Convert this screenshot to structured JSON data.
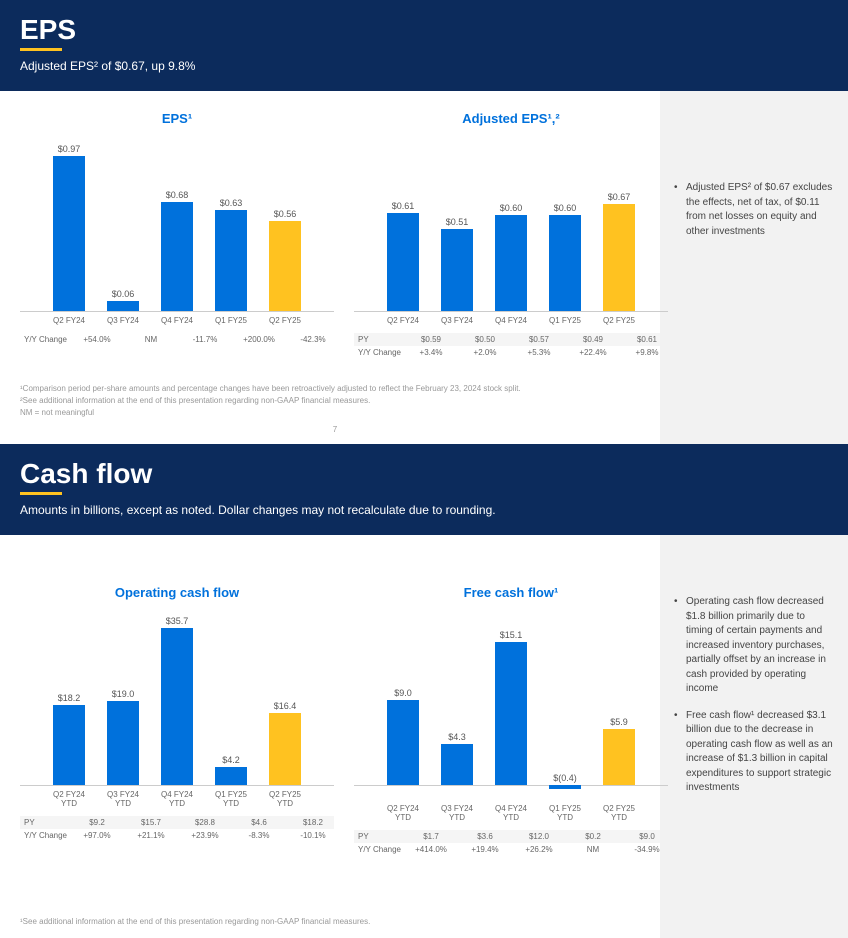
{
  "colors": {
    "primary_bar": "#0071dc",
    "highlight_bar": "#ffc220",
    "header_bg": "#0c2b5c",
    "header_text": "#ffffff",
    "accent": "#ffc220",
    "chart_title": "#0071dc",
    "sidebar_bg": "#f2f2f2",
    "text_muted": "#999999",
    "text_body": "#444444",
    "axis": "#cccccc"
  },
  "slide1": {
    "title": "EPS",
    "subtitle": "Adjusted EPS² of $0.67, up 9.8%",
    "page_number": "7",
    "footnotes": [
      "¹Comparison period per-share amounts and percentage changes have been retroactively adjusted to reflect the February 23, 2024 stock split.",
      "²See additional information at the end of this presentation regarding non-GAAP financial measures.",
      "NM = not meaningful"
    ],
    "sidebar_bullets": [
      "Adjusted EPS² of $0.67 excludes the effects, net of tax, of $0.11 from net losses on equity and other investments"
    ],
    "chart_eps": {
      "title": "EPS¹",
      "type": "bar",
      "yscale": 160,
      "categories": [
        "Q2 FY24",
        "Q3 FY24",
        "Q4 FY24",
        "Q1 FY25",
        "Q2 FY25"
      ],
      "value_labels": [
        "$0.97",
        "$0.06",
        "$0.68",
        "$0.63",
        "$0.56"
      ],
      "values": [
        0.97,
        0.06,
        0.68,
        0.63,
        0.56
      ],
      "bar_colors": [
        "#0071dc",
        "#0071dc",
        "#0071dc",
        "#0071dc",
        "#ffc220"
      ],
      "rows": [
        {
          "label": "Y/Y Change",
          "cells": [
            "+54.0%",
            "NM",
            "-11.7%",
            "+200.0%",
            "-42.3%"
          ],
          "alt": false
        }
      ]
    },
    "chart_adj_eps": {
      "title": "Adjusted EPS¹,²",
      "type": "bar",
      "yscale": 160,
      "categories": [
        "Q2 FY24",
        "Q3 FY24",
        "Q4 FY24",
        "Q1 FY25",
        "Q2 FY25"
      ],
      "value_labels": [
        "$0.61",
        "$0.51",
        "$0.60",
        "$0.60",
        "$0.67"
      ],
      "values": [
        0.61,
        0.51,
        0.6,
        0.6,
        0.67
      ],
      "bar_colors": [
        "#0071dc",
        "#0071dc",
        "#0071dc",
        "#0071dc",
        "#ffc220"
      ],
      "rows": [
        {
          "label": "PY",
          "cells": [
            "$0.59",
            "$0.50",
            "$0.57",
            "$0.49",
            "$0.61"
          ],
          "alt": true
        },
        {
          "label": "Y/Y Change",
          "cells": [
            "+3.4%",
            "+2.0%",
            "+5.3%",
            "+22.4%",
            "+9.8%"
          ],
          "alt": false
        }
      ]
    }
  },
  "slide2": {
    "title": "Cash flow",
    "subtitle": "Amounts in billions, except as noted.  Dollar changes may not recalculate due to rounding.",
    "footnotes": [
      "¹See additional information at the end of this presentation regarding non-GAAP financial measures."
    ],
    "sidebar_bullets": [
      "Operating cash flow decreased $1.8 billion primarily due to timing of certain payments and increased inventory purchases, partially offset by an increase in cash provided by operating income",
      "Free cash flow¹ decreased $3.1 billion due to the decrease in operating cash flow as well as an increase of $1.3 billion in capital expenditures to support strategic investments"
    ],
    "chart_ocf": {
      "title": "Operating cash flow",
      "type": "bar",
      "yscale": 4.4,
      "categories": [
        "Q2 FY24 YTD",
        "Q3 FY24 YTD",
        "Q4 FY24 YTD",
        "Q1 FY25 YTD",
        "Q2 FY25 YTD"
      ],
      "value_labels": [
        "$18.2",
        "$19.0",
        "$35.7",
        "$4.2",
        "$16.4"
      ],
      "values": [
        18.2,
        19.0,
        35.7,
        4.2,
        16.4
      ],
      "bar_colors": [
        "#0071dc",
        "#0071dc",
        "#0071dc",
        "#0071dc",
        "#ffc220"
      ],
      "rows": [
        {
          "label": "PY",
          "cells": [
            "$9.2",
            "$15.7",
            "$28.8",
            "$4.6",
            "$18.2"
          ],
          "alt": true
        },
        {
          "label": "Y/Y Change",
          "cells": [
            "+97.0%",
            "+21.1%",
            "+23.9%",
            "-8.3%",
            "-10.1%"
          ],
          "alt": false
        }
      ]
    },
    "chart_fcf": {
      "title": "Free cash flow¹",
      "type": "bar",
      "yscale": 9.5,
      "has_negative": true,
      "categories": [
        "Q2 FY24 YTD",
        "Q3 FY24 YTD",
        "Q4 FY24 YTD",
        "Q1 FY25 YTD",
        "Q2 FY25 YTD"
      ],
      "value_labels": [
        "$9.0",
        "$4.3",
        "$15.1",
        "$(0.4)",
        "$5.9"
      ],
      "values": [
        9.0,
        4.3,
        15.1,
        -0.4,
        5.9
      ],
      "bar_colors": [
        "#0071dc",
        "#0071dc",
        "#0071dc",
        "#0071dc",
        "#ffc220"
      ],
      "rows": [
        {
          "label": "PY",
          "cells": [
            "$1.7",
            "$3.6",
            "$12.0",
            "$0.2",
            "$9.0"
          ],
          "alt": true
        },
        {
          "label": "Y/Y Change",
          "cells": [
            "+414.0%",
            "+19.4%",
            "+26.2%",
            "NM",
            "-34.9%"
          ],
          "alt": false
        }
      ]
    }
  }
}
